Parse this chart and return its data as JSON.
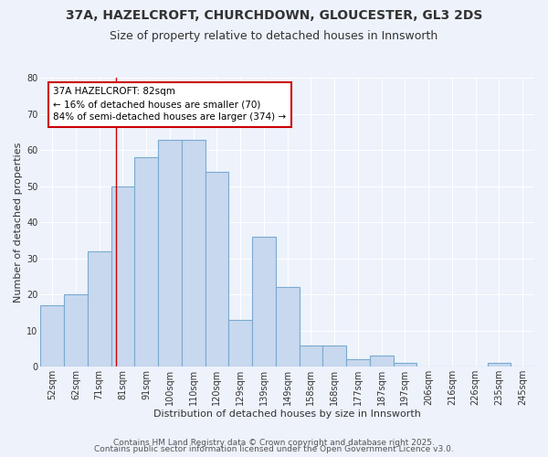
{
  "title": "37A, HAZELCROFT, CHURCHDOWN, GLOUCESTER, GL3 2DS",
  "subtitle": "Size of property relative to detached houses in Innsworth",
  "xlabel": "Distribution of detached houses by size in Innsworth",
  "ylabel": "Number of detached properties",
  "categories": [
    "52sqm",
    "62sqm",
    "71sqm",
    "81sqm",
    "91sqm",
    "100sqm",
    "110sqm",
    "120sqm",
    "129sqm",
    "139sqm",
    "149sqm",
    "158sqm",
    "168sqm",
    "177sqm",
    "187sqm",
    "197sqm",
    "206sqm",
    "216sqm",
    "226sqm",
    "235sqm",
    "245sqm"
  ],
  "values": [
    17,
    20,
    32,
    50,
    58,
    63,
    63,
    54,
    13,
    36,
    22,
    6,
    6,
    2,
    3,
    1,
    0,
    0,
    0,
    1,
    0
  ],
  "bar_color": "#c8d8ee",
  "bar_edge_color": "#7aaad0",
  "ylim": [
    0,
    80
  ],
  "yticks": [
    0,
    10,
    20,
    30,
    40,
    50,
    60,
    70,
    80
  ],
  "annotation_line1": "37A HAZELCROFT: 82sqm",
  "annotation_line2": "← 16% of detached houses are smaller (70)",
  "annotation_line3": "84% of semi-detached houses are larger (374) →",
  "annotation_box_color": "#ffffff",
  "annotation_box_edge_color": "#cc0000",
  "vline_color": "#cc0000",
  "footer1": "Contains HM Land Registry data © Crown copyright and database right 2025.",
  "footer2": "Contains public sector information licensed under the Open Government Licence v3.0.",
  "background_color": "#edf2fb",
  "grid_color": "#ffffff",
  "title_fontsize": 10,
  "subtitle_fontsize": 9,
  "axis_label_fontsize": 8,
  "tick_fontsize": 7,
  "annotation_fontsize": 7.5,
  "footer_fontsize": 6.5
}
